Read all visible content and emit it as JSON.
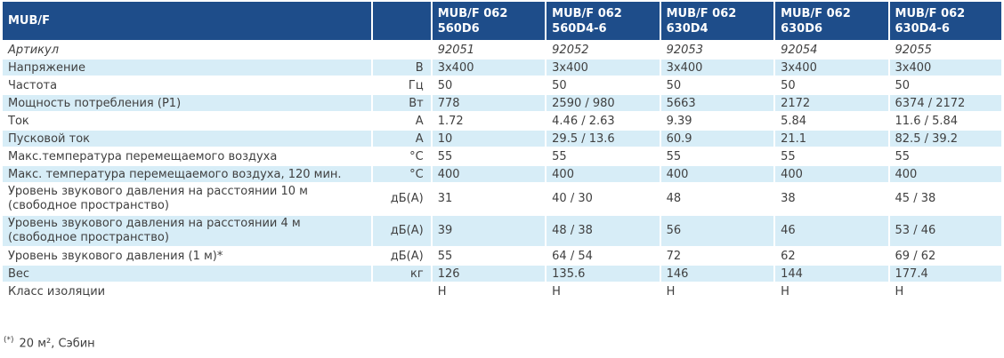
{
  "header": {
    "title": "MUB/F",
    "models": [
      "MUB/F 062 560D6",
      "MUB/F 062 560D4-6",
      "MUB/F 062 630D4",
      "MUB/F 062 630D6",
      "MUB/F 062 630D4-6"
    ]
  },
  "rows": [
    {
      "label": "Артикул",
      "unit": "",
      "values": [
        "92051",
        "92052",
        "92053",
        "92054",
        "92055"
      ]
    },
    {
      "label": "Напряжение",
      "unit": "В",
      "values": [
        "3x400",
        "3x400",
        "3x400",
        "3x400",
        "3x400"
      ]
    },
    {
      "label": "Частота",
      "unit": "Гц",
      "values": [
        "50",
        "50",
        "50",
        "50",
        "50"
      ]
    },
    {
      "label": "Мощность потребления (P1)",
      "unit": "Вт",
      "values": [
        "778",
        "2590 / 980",
        "5663",
        "2172",
        "6374 / 2172"
      ]
    },
    {
      "label": "Ток",
      "unit": "A",
      "values": [
        "1.72",
        "4.46 / 2.63",
        "9.39",
        "5.84",
        "11.6 / 5.84"
      ]
    },
    {
      "label": "Пусковой ток",
      "unit": "A",
      "values": [
        "10",
        "29.5 / 13.6",
        "60.9",
        "21.1",
        "82.5 / 39.2"
      ]
    },
    {
      "label": "Макс.температура перемещаемого воздуха",
      "unit": "°C",
      "values": [
        "55",
        "55",
        "55",
        "55",
        "55"
      ]
    },
    {
      "label": "Макс. температура перемещаемого воздуха, 120 мин.",
      "unit": "°C",
      "values": [
        "400",
        "400",
        "400",
        "400",
        "400"
      ]
    },
    {
      "label": "Уровень звукового давления на расстоянии 10 м (свободное пространство)",
      "unit": "дБ(A)",
      "values": [
        "31",
        "40 / 30",
        "48",
        "38",
        "45 / 38"
      ]
    },
    {
      "label": "Уровень звукового давления на расстоянии 4 м (свободное пространство)",
      "unit": "дБ(A)",
      "values": [
        "39",
        "48 / 38",
        "56",
        "46",
        "53 / 46"
      ]
    },
    {
      "label": "Уровень звукового давления (1 м)*",
      "unit": "дБ(A)",
      "values": [
        "55",
        "64 / 54",
        "72",
        "62",
        "69 / 62"
      ]
    },
    {
      "label": "Вес",
      "unit": "кг",
      "values": [
        "126",
        "135.6",
        "146",
        "144",
        "177.4"
      ]
    },
    {
      "label": "Класс изоляции",
      "unit": "",
      "values": [
        "H",
        "H",
        "H",
        "H",
        "H"
      ]
    }
  ],
  "footnote": {
    "mark": "(*)",
    "text": "20 м², Сэбин"
  }
}
